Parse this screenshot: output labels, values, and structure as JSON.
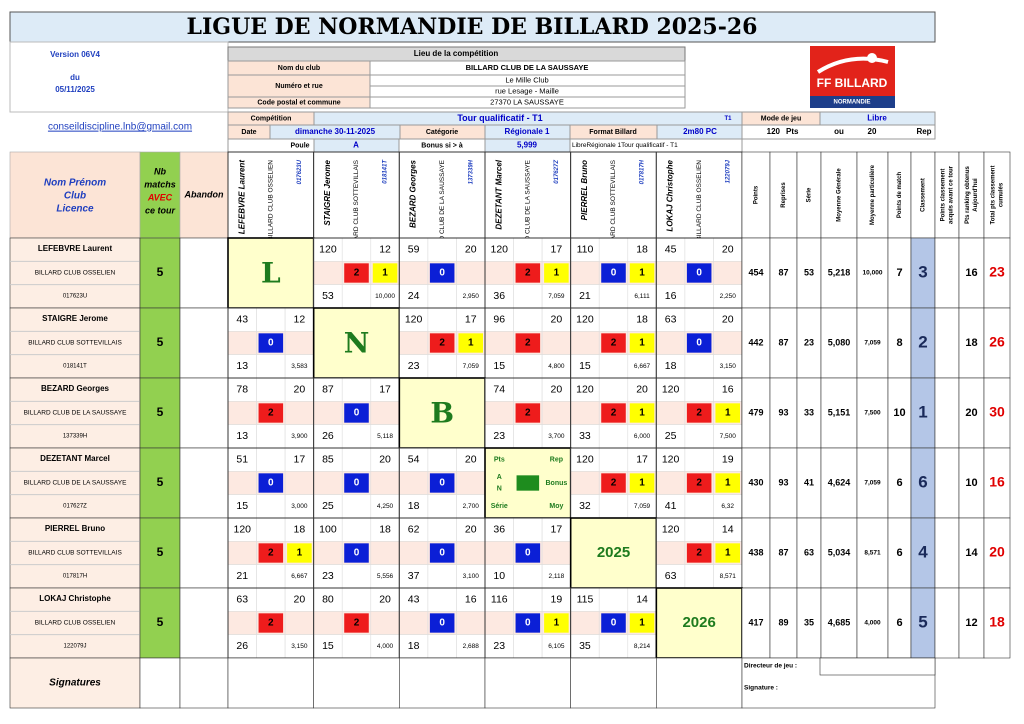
{
  "title": "LIGUE DE NORMANDIE DE BILLARD 2025-26",
  "version": {
    "version": "Version 06V4",
    "du": "du",
    "date": "05/11/2025"
  },
  "email": "conseildiscipline.lnb@gmail.com",
  "logo": {
    "text": "FF BILLARD",
    "region": "NORMANDIE"
  },
  "lieu": {
    "heading": "Lieu de la compétition",
    "rows": [
      [
        "Nom du club",
        "BILLARD CLUB DE LA SAUSSAYE"
      ],
      [
        "Numéro et rue",
        "Le Mille Club",
        "rue Lesage - Maille"
      ],
      [
        "Code postal et commune",
        "27370  LA SAUSSAYE"
      ]
    ]
  },
  "competition": {
    "competition_label": "Compétition",
    "competition": "Tour qualificatif - T1",
    "tour": "T1",
    "mode_label": "Mode de jeu",
    "mode": "Libre",
    "date_label": "Date",
    "date": "dimanche 30-11-2025",
    "categorie_label": "Catégorie",
    "categorie": "Régionale 1",
    "format_label": "Format Billard",
    "format": "2m80 PC",
    "points": 120,
    "points_unit": "Pts",
    "ou": "ou",
    "reprises": 20,
    "reprises_unit": "Rep",
    "poule_label": "Poule",
    "poule": "A",
    "bonus_label": "Bonus si > à",
    "bonus": "5,999",
    "summary": "LibreRégionale 1Tour qualificatif - T1"
  },
  "headers": {
    "player": [
      "Nom Prénom",
      "Club",
      "Licence"
    ],
    "nb": [
      "Nb",
      "matchs",
      "AVEC",
      "ce tour"
    ],
    "abandon": "Abandon",
    "stats": [
      [
        "Points"
      ],
      [
        "Reprises"
      ],
      [
        "Série"
      ],
      [
        "Moyenne Générale"
      ],
      [
        "Moyenne particulière"
      ],
      [
        "Points de match"
      ],
      [
        "Classement"
      ],
      [
        "Points classement",
        "acquis avant ce tour"
      ],
      [
        "Pts ranking obtenus",
        "Aujourd'hui"
      ],
      [
        "Total pts classement",
        "cumulés"
      ]
    ]
  },
  "diagonal": {
    "letters": [
      "L",
      "N",
      "B"
    ],
    "legend": [
      "Pts",
      "Rep",
      "A",
      "N",
      "Bonus",
      "Série",
      "Moy"
    ],
    "years": [
      "2025",
      "2026"
    ]
  },
  "players": [
    {
      "name": "LEFEBVRE Laurent",
      "club": "BILLARD CLUB OSSELIEN",
      "licence": "017623U",
      "nb": 5,
      "matches": [
        null,
        {
          "pts": 120,
          "rep": 12,
          "mp": 2,
          "bonus": 1,
          "serie": 53,
          "moy": "10,000"
        },
        {
          "pts": 59,
          "rep": 20,
          "mp": 0,
          "serie": 24,
          "moy": "2,950"
        },
        {
          "pts": 120,
          "rep": 17,
          "mp": 2,
          "bonus": 1,
          "serie": 36,
          "moy": "7,059"
        },
        {
          "pts": 110,
          "rep": 18,
          "mp": 0,
          "bonus": 1,
          "serie": 21,
          "moy": "6,111"
        },
        {
          "pts": 45,
          "rep": 20,
          "mp": 0,
          "serie": 16,
          "moy": "2,250"
        }
      ],
      "stats": [
        454,
        87,
        53,
        "5,218",
        "10,000",
        7,
        3,
        null,
        16,
        23
      ]
    },
    {
      "name": "STAIGRE Jerome",
      "club": "BILLARD CLUB SOTTEVILLAIS",
      "licence": "018141T",
      "nb": 5,
      "matches": [
        {
          "pts": 43,
          "rep": 12,
          "mp": 0,
          "serie": 13,
          "moy": "3,583"
        },
        null,
        {
          "pts": 120,
          "rep": 17,
          "mp": 2,
          "bonus": 1,
          "serie": 23,
          "moy": "7,059"
        },
        {
          "pts": 96,
          "rep": 20,
          "mp": 2,
          "serie": 15,
          "moy": "4,800"
        },
        {
          "pts": 120,
          "rep": 18,
          "mp": 2,
          "bonus": 1,
          "serie": 15,
          "moy": "6,667"
        },
        {
          "pts": 63,
          "rep": 20,
          "mp": 0,
          "serie": 18,
          "moy": "3,150"
        }
      ],
      "stats": [
        442,
        87,
        23,
        "5,080",
        "7,059",
        8,
        2,
        null,
        18,
        26
      ]
    },
    {
      "name": "BEZARD Georges",
      "club": "BILLARD CLUB DE LA SAUSSAYE",
      "licence": "137339H",
      "nb": 5,
      "matches": [
        {
          "pts": 78,
          "rep": 20,
          "mp": 2,
          "serie": 13,
          "moy": "3,900"
        },
        {
          "pts": 87,
          "rep": 17,
          "mp": 0,
          "serie": 26,
          "moy": "5,118"
        },
        null,
        {
          "pts": 74,
          "rep": 20,
          "mp": 2,
          "serie": 23,
          "moy": "3,700"
        },
        {
          "pts": 120,
          "rep": 20,
          "mp": 2,
          "bonus": 1,
          "serie": 33,
          "moy": "6,000"
        },
        {
          "pts": 120,
          "rep": 16,
          "mp": 2,
          "bonus": 1,
          "serie": 25,
          "moy": "7,500"
        }
      ],
      "stats": [
        479,
        93,
        33,
        "5,151",
        "7,500",
        10,
        1,
        null,
        20,
        30
      ]
    },
    {
      "name": "DEZETANT Marcel",
      "club": "BILLARD CLUB DE LA SAUSSAYE",
      "licence": "017627Z",
      "nb": 5,
      "matches": [
        {
          "pts": 51,
          "rep": 17,
          "mp": 0,
          "serie": 15,
          "moy": "3,000"
        },
        {
          "pts": 85,
          "rep": 20,
          "mp": 0,
          "serie": 25,
          "moy": "4,250"
        },
        {
          "pts": 54,
          "rep": 20,
          "mp": 0,
          "serie": 18,
          "moy": "2,700"
        },
        null,
        {
          "pts": 120,
          "rep": 17,
          "mp": 2,
          "bonus": 1,
          "serie": 32,
          "moy": "7,059"
        },
        {
          "pts": 120,
          "rep": 19,
          "mp": 2,
          "bonus": 1,
          "serie": 41,
          "moy": "6,32"
        }
      ],
      "stats": [
        430,
        93,
        41,
        "4,624",
        "7,059",
        6,
        6,
        null,
        10,
        16
      ]
    },
    {
      "name": "PIERREL Bruno",
      "club": "BILLARD CLUB SOTTEVILLAIS",
      "licence": "017817H",
      "nb": 5,
      "matches": [
        {
          "pts": 120,
          "rep": 18,
          "mp": 2,
          "bonus": 1,
          "serie": 21,
          "moy": "6,667"
        },
        {
          "pts": 100,
          "rep": 18,
          "mp": 0,
          "serie": 23,
          "moy": "5,556"
        },
        {
          "pts": 62,
          "rep": 20,
          "mp": 0,
          "serie": 37,
          "moy": "3,100"
        },
        {
          "pts": 36,
          "rep": 17,
          "mp": 0,
          "serie": 10,
          "moy": "2,118"
        },
        null,
        {
          "pts": 120,
          "rep": 14,
          "mp": 2,
          "bonus": 1,
          "serie": 63,
          "moy": "8,571"
        }
      ],
      "stats": [
        438,
        87,
        63,
        "5,034",
        "8,571",
        6,
        4,
        null,
        14,
        20
      ]
    },
    {
      "name": "LOKAJ Christophe",
      "club": "BILLARD CLUB OSSELIEN",
      "licence": "122079J",
      "nb": 5,
      "matches": [
        {
          "pts": 63,
          "rep": 20,
          "mp": 2,
          "serie": 26,
          "moy": "3,150"
        },
        {
          "pts": 80,
          "rep": 20,
          "mp": 2,
          "serie": 15,
          "moy": "4,000"
        },
        {
          "pts": 43,
          "rep": 16,
          "mp": 0,
          "serie": 18,
          "moy": "2,688"
        },
        {
          "pts": 116,
          "rep": 19,
          "mp": 0,
          "bonus": 1,
          "serie": 23,
          "moy": "6,105"
        },
        {
          "pts": 115,
          "rep": 14,
          "mp": 0,
          "bonus": 1,
          "serie": 35,
          "moy": "8,214"
        },
        null
      ],
      "stats": [
        417,
        89,
        35,
        "4,685",
        "4,000",
        6,
        5,
        null,
        12,
        18
      ]
    }
  ],
  "footer": {
    "signatures": "Signatures",
    "directeur": "Directeur de jeu :",
    "signature": "Signature :"
  }
}
